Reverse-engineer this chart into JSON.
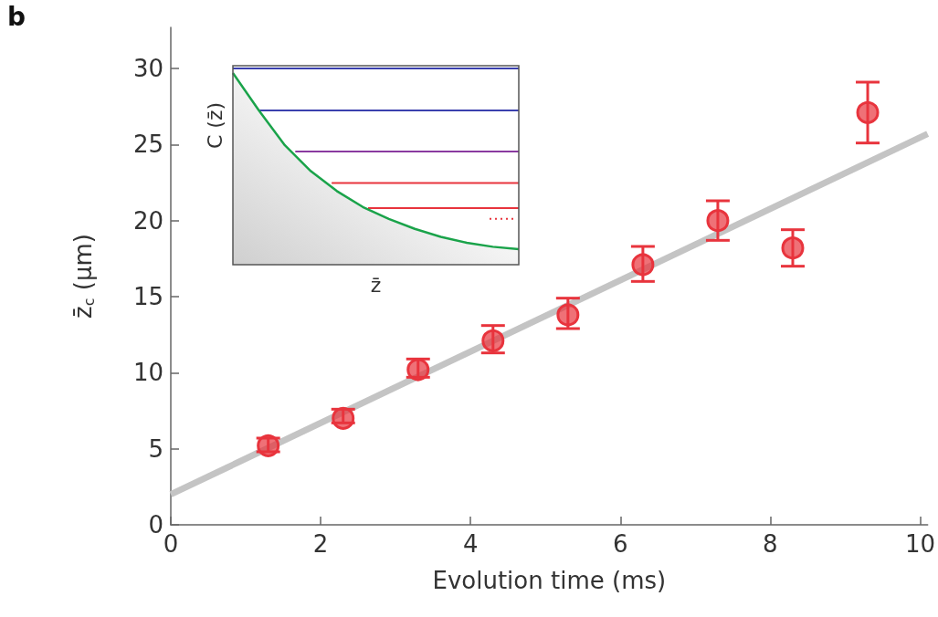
{
  "chart_data": [
    {
      "type": "scatter",
      "annotations": [
        "b"
      ],
      "xlabel": "Evolution time (ms)",
      "ylabel": "z̄$_{c}$ (μm)",
      "xlim": [
        0,
        10.1
      ],
      "xticks": [
        0,
        2,
        4,
        6,
        8,
        10
      ],
      "ylim": [
        0,
        32.7
      ],
      "yticks": [
        0,
        5,
        10,
        15,
        20,
        25,
        30
      ],
      "marker": "circle",
      "series": [
        {
          "type": "scatter",
          "color": "#e8343d",
          "x": [
            1.3,
            2.3,
            3.3,
            4.3,
            5.3,
            6.3,
            7.3,
            8.3,
            9.3
          ],
          "values": [
            5.2,
            7.0,
            10.2,
            12.1,
            13.8,
            17.1,
            20.0,
            18.2,
            27.1
          ],
          "errors": [
            [
              4.8,
              5.7
            ],
            [
              6.7,
              7.6
            ],
            [
              9.7,
              10.9
            ],
            [
              11.3,
              13.1
            ],
            [
              12.9,
              14.9
            ],
            [
              16.0,
              18.3
            ],
            [
              18.7,
              21.3
            ],
            [
              17.0,
              19.4
            ],
            [
              25.1,
              29.1
            ]
          ]
        },
        {
          "type": "line",
          "color": "#c4c4c4",
          "x": [
            0,
            10.1
          ],
          "values": [
            2.0,
            25.7
          ],
          "marker": "none"
        }
      ]
    },
    {
      "type": "other",
      "xlabel": "z̄",
      "ylabel": "C (z̄)"
    }
  ]
}
